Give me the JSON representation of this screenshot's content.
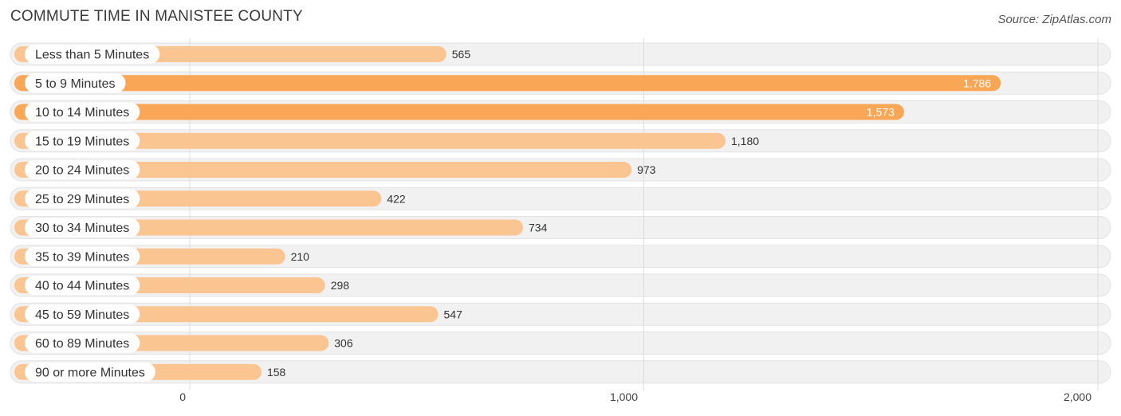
{
  "header": {
    "title": "COMMUTE TIME IN MANISTEE COUNTY",
    "source": "Source: ZipAtlas.com"
  },
  "colors": {
    "bar_light": "#fbc592",
    "bar_dark": "#f9a656",
    "row_bg": "#f1f1f1",
    "gridline": "#dddddd"
  },
  "chart_data": {
    "type": "bar",
    "orientation": "horizontal",
    "title": "COMMUTE TIME IN MANISTEE COUNTY",
    "categories": [
      "Less than 5 Minutes",
      "5 to 9 Minutes",
      "10 to 14 Minutes",
      "15 to 19 Minutes",
      "20 to 24 Minutes",
      "25 to 29 Minutes",
      "30 to 34 Minutes",
      "35 to 39 Minutes",
      "40 to 44 Minutes",
      "45 to 59 Minutes",
      "60 to 89 Minutes",
      "90 or more Minutes"
    ],
    "values": [
      565,
      1786,
      1573,
      1180,
      973,
      422,
      734,
      210,
      298,
      547,
      306,
      158
    ],
    "value_labels": [
      "565",
      "1,786",
      "1,573",
      "1,180",
      "973",
      "422",
      "734",
      "210",
      "298",
      "547",
      "306",
      "158"
    ],
    "xlim": [
      0,
      2000
    ],
    "ticks": [
      0,
      1000,
      2000
    ],
    "tick_labels": [
      "0",
      "1,000",
      "2,000"
    ],
    "grid": true
  }
}
